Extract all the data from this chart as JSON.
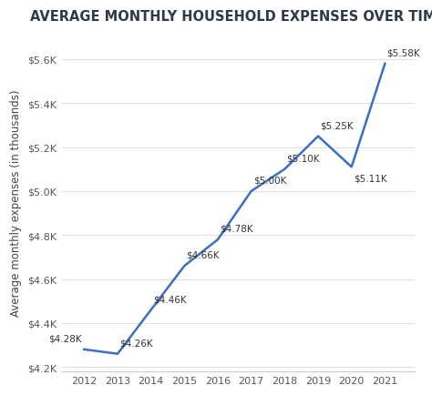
{
  "title": "AVERAGE MONTHLY HOUSEHOLD EXPENSES OVER TIME",
  "ylabel": "Average monthly expenses (in thousands)",
  "years": [
    2012,
    2013,
    2014,
    2015,
    2016,
    2017,
    2018,
    2019,
    2020,
    2021
  ],
  "values": [
    4.28,
    4.26,
    4.46,
    4.66,
    4.78,
    5.0,
    5.1,
    5.25,
    5.11,
    5.58
  ],
  "labels": [
    "$4.28K",
    "$4.26K",
    "$4.46K",
    "$4.66K",
    "$4.78K",
    "$5.00K",
    "$5.10K",
    "$5.25K",
    "$5.11K",
    "$5.58K"
  ],
  "line_color": "#3a6fc4",
  "background_color": "#ffffff",
  "ylim_min": 4.18,
  "ylim_max": 5.72,
  "yticks": [
    4.2,
    4.4,
    4.6,
    4.8,
    5.0,
    5.2,
    5.4,
    5.6
  ],
  "ytick_labels": [
    "$4.2K",
    "$4.4K",
    "$4.6K",
    "$4.8K",
    "$5.0K",
    "$5.2K",
    "$5.4K",
    "$5.6K"
  ],
  "title_fontsize": 10.5,
  "label_fontsize": 7.5,
  "ylabel_fontsize": 8.5,
  "tick_fontsize": 8,
  "label_offsets": [
    {
      "yr": 2012,
      "xoff": -0.08,
      "yoff": 0.03,
      "ha": "right"
    },
    {
      "yr": 2013,
      "xoff": 0.05,
      "yoff": 0.03,
      "ha": "left"
    },
    {
      "yr": 2014,
      "xoff": 0.06,
      "yoff": 0.03,
      "ha": "left"
    },
    {
      "yr": 2015,
      "xoff": 0.06,
      "yoff": 0.03,
      "ha": "left"
    },
    {
      "yr": 2016,
      "xoff": 0.06,
      "yoff": 0.03,
      "ha": "left"
    },
    {
      "yr": 2017,
      "xoff": 0.06,
      "yoff": 0.03,
      "ha": "left"
    },
    {
      "yr": 2018,
      "xoff": 0.06,
      "yoff": 0.03,
      "ha": "left"
    },
    {
      "yr": 2019,
      "xoff": 0.06,
      "yoff": 0.03,
      "ha": "left"
    },
    {
      "yr": 2020,
      "xoff": 0.06,
      "yoff": -0.07,
      "ha": "left"
    },
    {
      "yr": 2021,
      "xoff": 0.06,
      "yoff": 0.03,
      "ha": "left"
    }
  ]
}
